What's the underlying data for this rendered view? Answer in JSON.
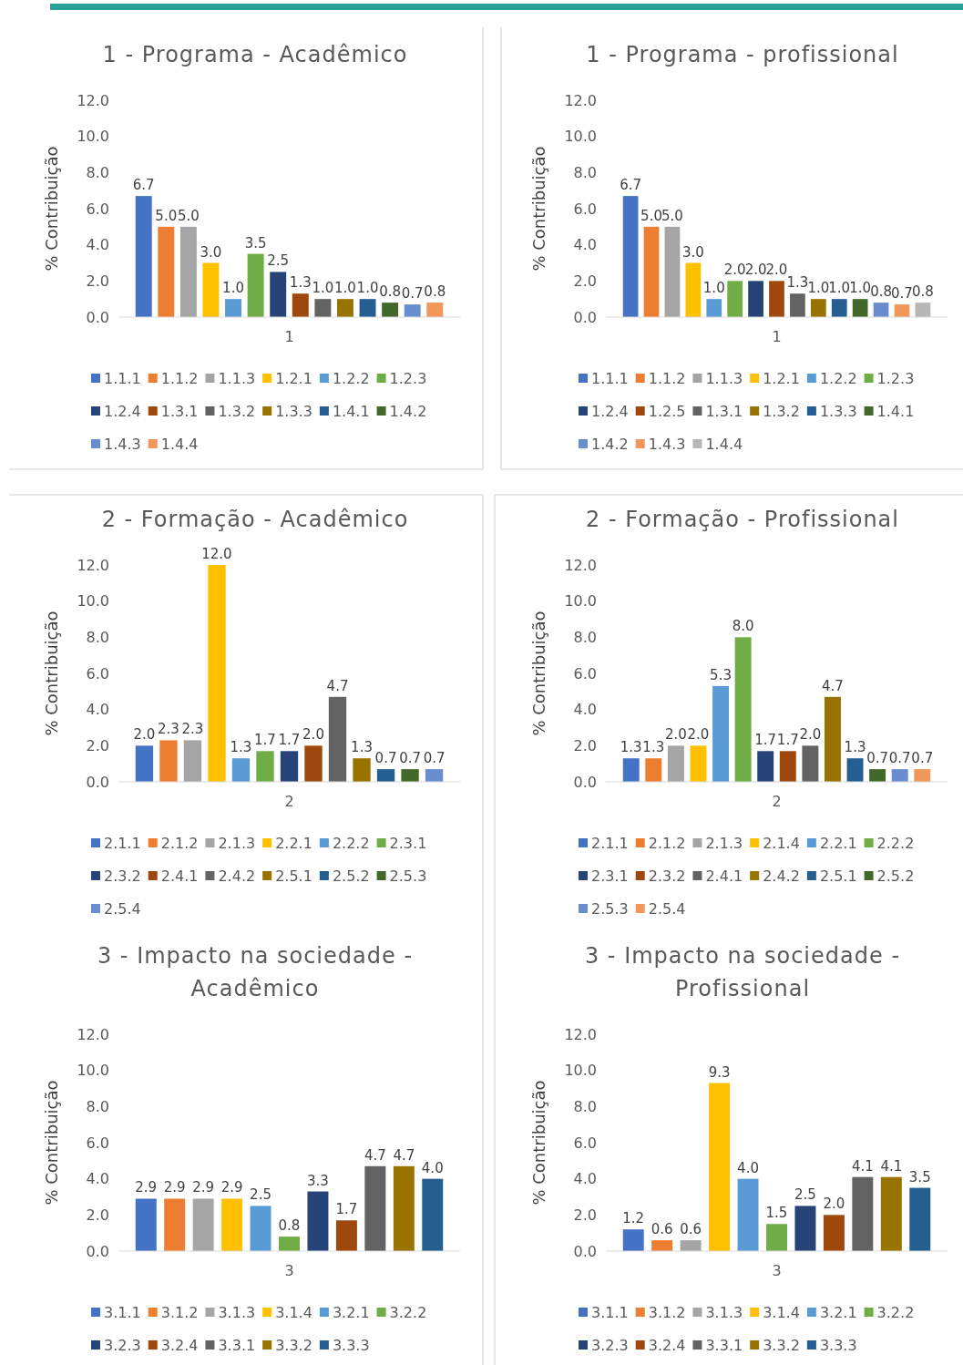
{
  "chart_data": [
    {
      "type": "bar",
      "title": "1 - Programa - Acadêmico",
      "ylabel": "% Contribuição",
      "categories": [
        "1"
      ],
      "ylim": [
        0,
        12
      ],
      "yticks": [
        {
          "value": 0,
          "label": "0.0"
        },
        {
          "value": 2,
          "label": "2.0"
        },
        {
          "value": 4,
          "label": "4.0"
        },
        {
          "value": 6,
          "label": "6.0"
        },
        {
          "value": 8,
          "label": "8.0"
        },
        {
          "value": 10,
          "label": "10.0"
        },
        {
          "value": 12,
          "label": "12.0"
        }
      ],
      "legend": "bottom",
      "series": [
        {
          "name": "1.1.1",
          "color": "#4472c4",
          "values": [
            6.7
          ],
          "value_labels": [
            "6.7"
          ]
        },
        {
          "name": "1.1.2",
          "color": "#ed7d31",
          "values": [
            5.0
          ],
          "value_labels": [
            "5.0"
          ]
        },
        {
          "name": "1.1.3",
          "color": "#a5a5a5",
          "values": [
            5.0
          ],
          "value_labels": [
            "5.0"
          ]
        },
        {
          "name": "1.2.1",
          "color": "#ffc000",
          "values": [
            3.0
          ],
          "value_labels": [
            "3.0"
          ]
        },
        {
          "name": "1.2.2",
          "color": "#5b9bd5",
          "values": [
            1.0
          ],
          "value_labels": [
            "1.0"
          ]
        },
        {
          "name": "1.2.3",
          "color": "#70ad47",
          "values": [
            3.5
          ],
          "value_labels": [
            "3.5"
          ]
        },
        {
          "name": "1.2.4",
          "color": "#264478",
          "values": [
            2.5
          ],
          "value_labels": [
            "2.5"
          ]
        },
        {
          "name": "1.3.1",
          "color": "#9e480e",
          "values": [
            1.3
          ],
          "value_labels": [
            "1.3"
          ]
        },
        {
          "name": "1.3.2",
          "color": "#636363",
          "values": [
            1.0
          ],
          "value_labels": [
            "1.0"
          ]
        },
        {
          "name": "1.3.3",
          "color": "#997300",
          "values": [
            1.0
          ],
          "value_labels": [
            "1.0"
          ]
        },
        {
          "name": "1.4.1",
          "color": "#255e91",
          "values": [
            1.0
          ],
          "value_labels": [
            "1.0"
          ]
        },
        {
          "name": "1.4.2",
          "color": "#43682b",
          "values": [
            0.8
          ],
          "value_labels": [
            "0.8"
          ]
        },
        {
          "name": "1.4.3",
          "color": "#698ed0",
          "values": [
            0.7
          ],
          "value_labels": [
            "0.7"
          ]
        },
        {
          "name": "1.4.4",
          "color": "#f1975a",
          "values": [
            0.8
          ],
          "value_labels": [
            "0.8"
          ]
        }
      ]
    },
    {
      "type": "bar",
      "title": "1 - Programa - profissional",
      "ylabel": "% Contribuição",
      "categories": [
        "1"
      ],
      "ylim": [
        0,
        12
      ],
      "yticks": [
        {
          "value": 0,
          "label": "0.0"
        },
        {
          "value": 2,
          "label": "2.0"
        },
        {
          "value": 4,
          "label": "4.0"
        },
        {
          "value": 6,
          "label": "6.0"
        },
        {
          "value": 8,
          "label": "8.0"
        },
        {
          "value": 10,
          "label": "10.0"
        },
        {
          "value": 12,
          "label": "12.0"
        }
      ],
      "legend": "bottom",
      "series": [
        {
          "name": "1.1.1",
          "color": "#4472c4",
          "values": [
            6.7
          ],
          "value_labels": [
            "6.7"
          ]
        },
        {
          "name": "1.1.2",
          "color": "#ed7d31",
          "values": [
            5.0
          ],
          "value_labels": [
            "5.0"
          ]
        },
        {
          "name": "1.1.3",
          "color": "#a5a5a5",
          "values": [
            5.0
          ],
          "value_labels": [
            "5.0"
          ]
        },
        {
          "name": "1.2.1",
          "color": "#ffc000",
          "values": [
            3.0
          ],
          "value_labels": [
            "3.0"
          ]
        },
        {
          "name": "1.2.2",
          "color": "#5b9bd5",
          "values": [
            1.0
          ],
          "value_labels": [
            "1.0"
          ]
        },
        {
          "name": "1.2.3",
          "color": "#70ad47",
          "values": [
            2.0
          ],
          "value_labels": [
            "2.0"
          ]
        },
        {
          "name": "1.2.4",
          "color": "#264478",
          "values": [
            2.0
          ],
          "value_labels": [
            "2.0"
          ]
        },
        {
          "name": "1.2.5",
          "color": "#9e480e",
          "values": [
            2.0
          ],
          "value_labels": [
            "2.0"
          ]
        },
        {
          "name": "1.3.1",
          "color": "#636363",
          "values": [
            1.3
          ],
          "value_labels": [
            "1.3"
          ]
        },
        {
          "name": "1.3.2",
          "color": "#997300",
          "values": [
            1.0
          ],
          "value_labels": [
            "1.0"
          ]
        },
        {
          "name": "1.3.3",
          "color": "#255e91",
          "values": [
            1.0
          ],
          "value_labels": [
            "1.0"
          ]
        },
        {
          "name": "1.4.1",
          "color": "#43682b",
          "values": [
            1.0
          ],
          "value_labels": [
            "1.0"
          ]
        },
        {
          "name": "1.4.2",
          "color": "#698ed0",
          "values": [
            0.8
          ],
          "value_labels": [
            "0.8"
          ]
        },
        {
          "name": "1.4.3",
          "color": "#f1975a",
          "values": [
            0.7
          ],
          "value_labels": [
            "0.7"
          ]
        },
        {
          "name": "1.4.4",
          "color": "#b7b7b7",
          "values": [
            0.8
          ],
          "value_labels": [
            "0.8"
          ]
        }
      ]
    },
    {
      "type": "bar",
      "title": "2 - Formação - Acadêmico",
      "ylabel": "% Contribuição",
      "categories": [
        "2"
      ],
      "ylim": [
        0,
        12
      ],
      "yticks": [
        {
          "value": 0,
          "label": "0.0"
        },
        {
          "value": 2,
          "label": "2.0"
        },
        {
          "value": 4,
          "label": "4.0"
        },
        {
          "value": 6,
          "label": "6.0"
        },
        {
          "value": 8,
          "label": "8.0"
        },
        {
          "value": 10,
          "label": "10.0"
        },
        {
          "value": 12,
          "label": "12.0"
        }
      ],
      "legend": "bottom",
      "series": [
        {
          "name": "2.1.1",
          "color": "#4472c4",
          "values": [
            2.0
          ],
          "value_labels": [
            "2.0"
          ]
        },
        {
          "name": "2.1.2",
          "color": "#ed7d31",
          "values": [
            2.3
          ],
          "value_labels": [
            "2.3"
          ]
        },
        {
          "name": "2.1.3",
          "color": "#a5a5a5",
          "values": [
            2.3
          ],
          "value_labels": [
            "2.3"
          ]
        },
        {
          "name": "2.2.1",
          "color": "#ffc000",
          "values": [
            12.0
          ],
          "value_labels": [
            "12.0"
          ]
        },
        {
          "name": "2.2.2",
          "color": "#5b9bd5",
          "values": [
            1.3
          ],
          "value_labels": [
            "1.3"
          ]
        },
        {
          "name": "2.3.1",
          "color": "#70ad47",
          "values": [
            1.7
          ],
          "value_labels": [
            "1.7"
          ]
        },
        {
          "name": "2.3.2",
          "color": "#264478",
          "values": [
            1.7
          ],
          "value_labels": [
            "1.7"
          ]
        },
        {
          "name": "2.4.1",
          "color": "#9e480e",
          "values": [
            2.0
          ],
          "value_labels": [
            "2.0"
          ]
        },
        {
          "name": "2.4.2",
          "color": "#636363",
          "values": [
            4.7
          ],
          "value_labels": [
            "4.7"
          ]
        },
        {
          "name": "2.5.1",
          "color": "#997300",
          "values": [
            1.3
          ],
          "value_labels": [
            "1.3"
          ]
        },
        {
          "name": "2.5.2",
          "color": "#255e91",
          "values": [
            0.7
          ],
          "value_labels": [
            "0.7"
          ]
        },
        {
          "name": "2.5.3",
          "color": "#43682b",
          "values": [
            0.7
          ],
          "value_labels": [
            "0.7"
          ]
        },
        {
          "name": "2.5.4",
          "color": "#698ed0",
          "values": [
            0.7
          ],
          "value_labels": [
            "0.7"
          ]
        }
      ]
    },
    {
      "type": "bar",
      "title": "2 - Formação - Profissional",
      "ylabel": "% Contribuição",
      "categories": [
        "2"
      ],
      "ylim": [
        0,
        12
      ],
      "yticks": [
        {
          "value": 0,
          "label": "0.0"
        },
        {
          "value": 2,
          "label": "2.0"
        },
        {
          "value": 4,
          "label": "4.0"
        },
        {
          "value": 6,
          "label": "6.0"
        },
        {
          "value": 8,
          "label": "8.0"
        },
        {
          "value": 10,
          "label": "10.0"
        },
        {
          "value": 12,
          "label": "12.0"
        }
      ],
      "legend": "bottom",
      "series": [
        {
          "name": "2.1.1",
          "color": "#4472c4",
          "values": [
            1.3
          ],
          "value_labels": [
            "1.3"
          ]
        },
        {
          "name": "2.1.2",
          "color": "#ed7d31",
          "values": [
            1.3
          ],
          "value_labels": [
            "1.3"
          ]
        },
        {
          "name": "2.1.3",
          "color": "#a5a5a5",
          "values": [
            2.0
          ],
          "value_labels": [
            "2.0"
          ]
        },
        {
          "name": "2.1.4",
          "color": "#ffc000",
          "values": [
            2.0
          ],
          "value_labels": [
            "2.0"
          ]
        },
        {
          "name": "2.2.1",
          "color": "#5b9bd5",
          "values": [
            5.3
          ],
          "value_labels": [
            "5.3"
          ]
        },
        {
          "name": "2.2.2",
          "color": "#70ad47",
          "values": [
            8.0
          ],
          "value_labels": [
            "8.0"
          ]
        },
        {
          "name": "2.3.1",
          "color": "#264478",
          "values": [
            1.7
          ],
          "value_labels": [
            "1.7"
          ]
        },
        {
          "name": "2.3.2",
          "color": "#9e480e",
          "values": [
            1.7
          ],
          "value_labels": [
            "1.7"
          ]
        },
        {
          "name": "2.4.1",
          "color": "#636363",
          "values": [
            2.0
          ],
          "value_labels": [
            "2.0"
          ]
        },
        {
          "name": "2.4.2",
          "color": "#997300",
          "values": [
            4.7
          ],
          "value_labels": [
            "4.7"
          ]
        },
        {
          "name": "2.5.1",
          "color": "#255e91",
          "values": [
            1.3
          ],
          "value_labels": [
            "1.3"
          ]
        },
        {
          "name": "2.5.2",
          "color": "#43682b",
          "values": [
            0.7
          ],
          "value_labels": [
            "0.7"
          ]
        },
        {
          "name": "2.5.3",
          "color": "#698ed0",
          "values": [
            0.7
          ],
          "value_labels": [
            "0.7"
          ]
        },
        {
          "name": "2.5.4",
          "color": "#f1975a",
          "values": [
            0.7
          ],
          "value_labels": [
            "0.7"
          ]
        }
      ]
    },
    {
      "type": "bar",
      "title": "3 - Impacto na sociedade - Acadêmico",
      "ylabel": "% Contribuição",
      "categories": [
        "3"
      ],
      "ylim": [
        0,
        12
      ],
      "yticks": [
        {
          "value": 0,
          "label": "0.0"
        },
        {
          "value": 2,
          "label": "2.0"
        },
        {
          "value": 4,
          "label": "4.0"
        },
        {
          "value": 6,
          "label": "6.0"
        },
        {
          "value": 8,
          "label": "8.0"
        },
        {
          "value": 10,
          "label": "10.0"
        },
        {
          "value": 12,
          "label": "12.0"
        }
      ],
      "legend": "bottom",
      "series": [
        {
          "name": "3.1.1",
          "color": "#4472c4",
          "values": [
            2.9
          ],
          "value_labels": [
            "2.9"
          ]
        },
        {
          "name": "3.1.2",
          "color": "#ed7d31",
          "values": [
            2.9
          ],
          "value_labels": [
            "2.9"
          ]
        },
        {
          "name": "3.1.3",
          "color": "#a5a5a5",
          "values": [
            2.9
          ],
          "value_labels": [
            "2.9"
          ]
        },
        {
          "name": "3.1.4",
          "color": "#ffc000",
          "values": [
            2.9
          ],
          "value_labels": [
            "2.9"
          ]
        },
        {
          "name": "3.2.1",
          "color": "#5b9bd5",
          "values": [
            2.5
          ],
          "value_labels": [
            "2.5"
          ]
        },
        {
          "name": "3.2.2",
          "color": "#70ad47",
          "values": [
            0.8
          ],
          "value_labels": [
            "0.8"
          ]
        },
        {
          "name": "3.2.3",
          "color": "#264478",
          "values": [
            3.3
          ],
          "value_labels": [
            "3.3"
          ]
        },
        {
          "name": "3.2.4",
          "color": "#9e480e",
          "values": [
            1.7
          ],
          "value_labels": [
            "1.7"
          ]
        },
        {
          "name": "3.3.1",
          "color": "#636363",
          "values": [
            4.7
          ],
          "value_labels": [
            "4.7"
          ]
        },
        {
          "name": "3.3.2",
          "color": "#997300",
          "values": [
            4.7
          ],
          "value_labels": [
            "4.7"
          ]
        },
        {
          "name": "3.3.3",
          "color": "#255e91",
          "values": [
            4.0
          ],
          "value_labels": [
            "4.0"
          ]
        }
      ]
    },
    {
      "type": "bar",
      "title": "3 - Impacto na sociedade - Profissional",
      "ylabel": "% Contribuição",
      "categories": [
        "3"
      ],
      "ylim": [
        0,
        12
      ],
      "yticks": [
        {
          "value": 0,
          "label": "0.0"
        },
        {
          "value": 2,
          "label": "2.0"
        },
        {
          "value": 4,
          "label": "4.0"
        },
        {
          "value": 6,
          "label": "6.0"
        },
        {
          "value": 8,
          "label": "8.0"
        },
        {
          "value": 10,
          "label": "10.0"
        },
        {
          "value": 12,
          "label": "12.0"
        }
      ],
      "legend": "bottom",
      "series": [
        {
          "name": "3.1.1",
          "color": "#4472c4",
          "values": [
            1.2
          ],
          "value_labels": [
            "1.2"
          ]
        },
        {
          "name": "3.1.2",
          "color": "#ed7d31",
          "values": [
            0.6
          ],
          "value_labels": [
            "0.6"
          ]
        },
        {
          "name": "3.1.3",
          "color": "#a5a5a5",
          "values": [
            0.6
          ],
          "value_labels": [
            "0.6"
          ]
        },
        {
          "name": "3.1.4",
          "color": "#ffc000",
          "values": [
            9.3
          ],
          "value_labels": [
            "9.3"
          ]
        },
        {
          "name": "3.2.1",
          "color": "#5b9bd5",
          "values": [
            4.0
          ],
          "value_labels": [
            "4.0"
          ]
        },
        {
          "name": "3.2.2",
          "color": "#70ad47",
          "values": [
            1.5
          ],
          "value_labels": [
            "1.5"
          ]
        },
        {
          "name": "3.2.3",
          "color": "#264478",
          "values": [
            2.5
          ],
          "value_labels": [
            "2.5"
          ]
        },
        {
          "name": "3.2.4",
          "color": "#9e480e",
          "values": [
            2.0
          ],
          "value_labels": [
            "2.0"
          ]
        },
        {
          "name": "3.3.1",
          "color": "#636363",
          "values": [
            4.1
          ],
          "value_labels": [
            "4.1"
          ]
        },
        {
          "name": "3.3.2",
          "color": "#997300",
          "values": [
            4.1
          ],
          "value_labels": [
            "4.1"
          ]
        },
        {
          "name": "3.3.3",
          "color": "#255e91",
          "values": [
            3.5
          ],
          "value_labels": [
            "3.5"
          ]
        }
      ]
    }
  ]
}
